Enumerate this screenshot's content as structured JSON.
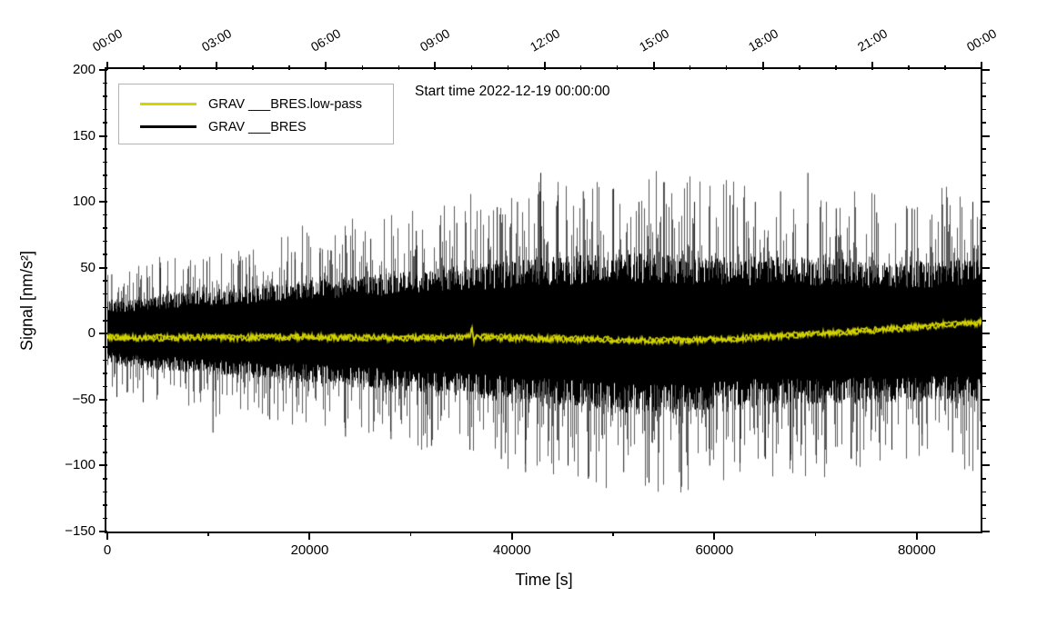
{
  "chart_data": {
    "type": "line",
    "title": "Start time 2022-12-19 00:00:00",
    "xlabel": "Time [s]",
    "ylabel": "Signal [nm/s²]",
    "xlim": [
      0,
      86400
    ],
    "ylim": [
      -150,
      200
    ],
    "grid": false,
    "x_major_ticks": [
      0,
      20000,
      40000,
      60000,
      80000
    ],
    "x_tick_labels": [
      "0",
      "20000",
      "40000",
      "60000",
      "80000"
    ],
    "x_minor_tick_step": 10000,
    "y_major_ticks": [
      200,
      150,
      100,
      50,
      0,
      -50,
      -100,
      -150
    ],
    "y_tick_labels": [
      "200",
      "150",
      "100",
      "50",
      "0",
      "−50",
      "−100",
      "−150"
    ],
    "y_minor_tick_step": 10,
    "top_axis": {
      "labels": [
        "00:00",
        "03:00",
        "06:00",
        "09:00",
        "12:00",
        "15:00",
        "18:00",
        "21:00",
        "00:00"
      ],
      "major_step_seconds": 10800,
      "minor_step_seconds": 3600,
      "label_rotation_deg": -30
    },
    "legend": {
      "position": "top-left",
      "entries": [
        {
          "label": "GRAV ___BRES.low-pass",
          "color": "#d4d400"
        },
        {
          "label": "GRAV ___BRES",
          "color": "#000000"
        }
      ]
    },
    "series": [
      {
        "name": "GRAV ___BRES",
        "type": "noise-envelope",
        "color": "#000000",
        "envelope": [
          [
            0,
            22,
            -20
          ],
          [
            4000,
            26,
            -24
          ],
          [
            8000,
            29,
            -26
          ],
          [
            12000,
            31,
            -29
          ],
          [
            16000,
            34,
            -31
          ],
          [
            20000,
            37,
            -33
          ],
          [
            24000,
            39,
            -36
          ],
          [
            28000,
            41,
            -38
          ],
          [
            32000,
            44,
            -40
          ],
          [
            36000,
            47,
            -43
          ],
          [
            40000,
            50,
            -46
          ],
          [
            44000,
            52,
            -48
          ],
          [
            48000,
            54,
            -51
          ],
          [
            52000,
            55,
            -55
          ],
          [
            56000,
            54,
            -54
          ],
          [
            60000,
            53,
            -51
          ],
          [
            64000,
            52,
            -49
          ],
          [
            68000,
            52,
            -48
          ],
          [
            72000,
            51,
            -48
          ],
          [
            76000,
            49,
            -46
          ],
          [
            80000,
            49,
            -46
          ],
          [
            84000,
            50,
            -46
          ],
          [
            86400,
            51,
            -47
          ]
        ],
        "spikes": [
          [
            400,
            45
          ],
          [
            900,
            -48
          ],
          [
            3500,
            -52
          ],
          [
            5200,
            50
          ],
          [
            9800,
            55
          ],
          [
            10400,
            -75
          ],
          [
            14000,
            60
          ],
          [
            16000,
            -65
          ],
          [
            18500,
            62
          ],
          [
            21000,
            65
          ],
          [
            23500,
            -78
          ],
          [
            26000,
            72
          ],
          [
            28000,
            -80
          ],
          [
            30500,
            78
          ],
          [
            32000,
            -85
          ],
          [
            34500,
            84
          ],
          [
            35800,
            -88
          ],
          [
            38500,
            96
          ],
          [
            38900,
            -95
          ],
          [
            40500,
            100
          ],
          [
            41300,
            -105
          ],
          [
            42800,
            122
          ],
          [
            44500,
            105
          ],
          [
            45500,
            -100
          ],
          [
            47000,
            108
          ],
          [
            47500,
            -110
          ],
          [
            50000,
            110
          ],
          [
            51000,
            -105
          ],
          [
            52500,
            100
          ],
          [
            53500,
            -113
          ],
          [
            55000,
            115
          ],
          [
            56500,
            -105
          ],
          [
            58000,
            100
          ],
          [
            59500,
            -100
          ],
          [
            61500,
            105
          ],
          [
            62500,
            -98
          ],
          [
            64000,
            100
          ],
          [
            65000,
            -95
          ],
          [
            66500,
            108
          ],
          [
            67500,
            -96
          ],
          [
            69200,
            122
          ],
          [
            70000,
            -92
          ],
          [
            72000,
            95
          ],
          [
            73500,
            -95
          ],
          [
            76000,
            92
          ],
          [
            77500,
            -88
          ],
          [
            79500,
            95
          ],
          [
            80500,
            -85
          ],
          [
            82500,
            98
          ],
          [
            83500,
            -90
          ],
          [
            85500,
            100
          ],
          [
            86000,
            -88
          ]
        ]
      },
      {
        "name": "GRAV ___BRES.low-pass",
        "type": "line",
        "color": "#d4d400",
        "jitter": 2.2,
        "points": [
          [
            0,
            -3
          ],
          [
            4000,
            -3
          ],
          [
            8000,
            -2.8
          ],
          [
            12000,
            -3
          ],
          [
            16000,
            -2.5
          ],
          [
            20000,
            -2.6
          ],
          [
            24000,
            -3
          ],
          [
            28000,
            -3
          ],
          [
            32000,
            -3
          ],
          [
            35800,
            -2.2
          ],
          [
            36050,
            4.5
          ],
          [
            36200,
            -5.5
          ],
          [
            36500,
            -2.5
          ],
          [
            40000,
            -3.2
          ],
          [
            44000,
            -3.8
          ],
          [
            48000,
            -4.3
          ],
          [
            52000,
            -5
          ],
          [
            55000,
            -5.2
          ],
          [
            58000,
            -4.8
          ],
          [
            61000,
            -4
          ],
          [
            64000,
            -2.8
          ],
          [
            67000,
            -1.5
          ],
          [
            70000,
            -0.2
          ],
          [
            73000,
            1.2
          ],
          [
            76000,
            2.8
          ],
          [
            79000,
            4.5
          ],
          [
            82000,
            6.2
          ],
          [
            84500,
            7.5
          ],
          [
            86400,
            8.5
          ]
        ]
      }
    ]
  },
  "colors": {
    "background": "#ffffff",
    "frame": "#000000",
    "legend_border": "#b3b3b3",
    "lowpass_yellow": "#d4d400",
    "raw_black": "#000000"
  }
}
